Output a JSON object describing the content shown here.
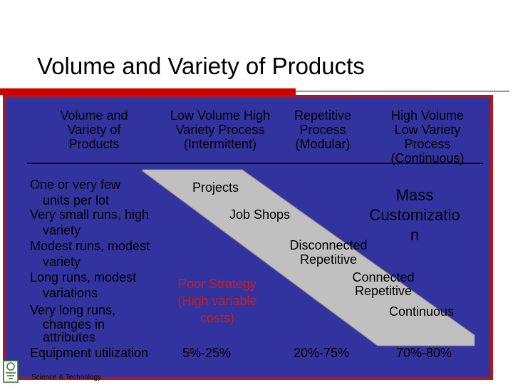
{
  "title": "Volume and Variety of Products",
  "header": {
    "col1": [
      "Volume and",
      "Variety of",
      "Products"
    ],
    "col2": [
      "Low Volume High",
      "Variety Process",
      "(Intermittent)"
    ],
    "col3": [
      "Repetitive",
      "Process",
      "(Modular)"
    ],
    "col4": [
      "High Volume",
      "Low Variety",
      "Process",
      "(Continuous)"
    ]
  },
  "rows": {
    "r1": [
      "One or very few",
      "units per lot"
    ],
    "r2": [
      "Very small runs, high",
      "variety"
    ],
    "r3": [
      "Modest runs, modest",
      "variety"
    ],
    "r4": [
      "Long runs, modest",
      "variations"
    ],
    "r5": [
      "Very long runs,",
      "changes in",
      "attributes"
    ]
  },
  "labels": {
    "projects": "Projects",
    "job_shops": "Job Shops",
    "disconnected": [
      "Disconnected",
      "Repetitive"
    ],
    "connected": [
      "Connected",
      "Repetitive"
    ],
    "continuous": "Continuous",
    "mass_customization": [
      "Mass",
      "Customizatio",
      "n"
    ],
    "poor_strategy": [
      "Poor Strategy",
      "(High variable",
      "costs)"
    ]
  },
  "utilization": {
    "label": "Equipment utilization",
    "low": "5%-25%",
    "mid": "20%-75%",
    "high": "70%-80%"
  },
  "footer": "Science & Technology",
  "colors": {
    "panel": "#3333a0",
    "band": "#c0c0c0",
    "accent": "#cc0000",
    "poor_strategy": "#c81c1c"
  }
}
